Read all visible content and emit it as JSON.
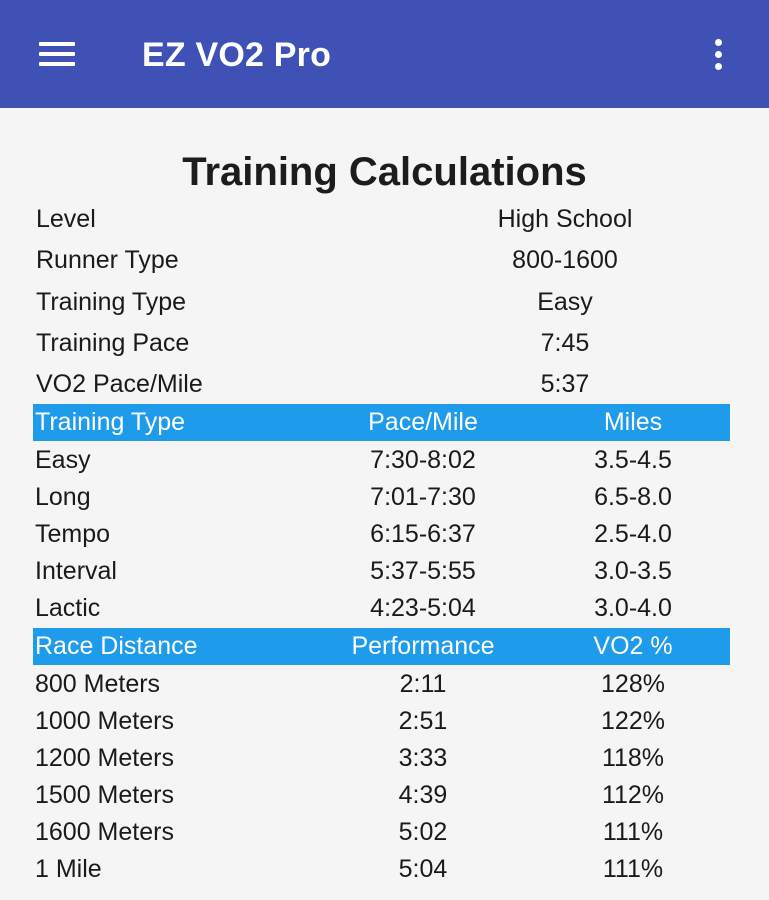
{
  "appbar": {
    "title": "EZ VO2 Pro",
    "menu_icon": "hamburger-menu-icon",
    "overflow_icon": "more-vert-icon",
    "color": "#3f51b5"
  },
  "page": {
    "title": "Training Calculations"
  },
  "info": [
    {
      "label": "Level",
      "value": "High School"
    },
    {
      "label": "Runner Type",
      "value": "800-1600"
    },
    {
      "label": "Training Type",
      "value": "Easy"
    },
    {
      "label": "Training Pace",
      "value": "7:45"
    },
    {
      "label": "VO2 Pace/Mile",
      "value": "5:37"
    }
  ],
  "training_table": {
    "header_color": "#1e9bea",
    "headers": [
      "Training Type",
      "Pace/Mile",
      "Miles"
    ],
    "rows": [
      [
        "Easy",
        "7:30-8:02",
        "3.5-4.5"
      ],
      [
        "Long",
        "7:01-7:30",
        "6.5-8.0"
      ],
      [
        "Tempo",
        "6:15-6:37",
        "2.5-4.0"
      ],
      [
        "Interval",
        "5:37-5:55",
        "3.0-3.5"
      ],
      [
        "Lactic",
        "4:23-5:04",
        "3.0-4.0"
      ]
    ]
  },
  "race_table": {
    "header_color": "#1e9bea",
    "headers": [
      "Race Distance",
      "Performance",
      "VO2 %"
    ],
    "rows": [
      [
        "800 Meters",
        "2:11",
        "128%"
      ],
      [
        "1000 Meters",
        "2:51",
        "122%"
      ],
      [
        "1200 Meters",
        "3:33",
        "118%"
      ],
      [
        "1500 Meters",
        "4:39",
        "112%"
      ],
      [
        "1600 Meters",
        "5:02",
        "111%"
      ],
      [
        "1 Mile",
        "5:04",
        "111%"
      ]
    ]
  }
}
